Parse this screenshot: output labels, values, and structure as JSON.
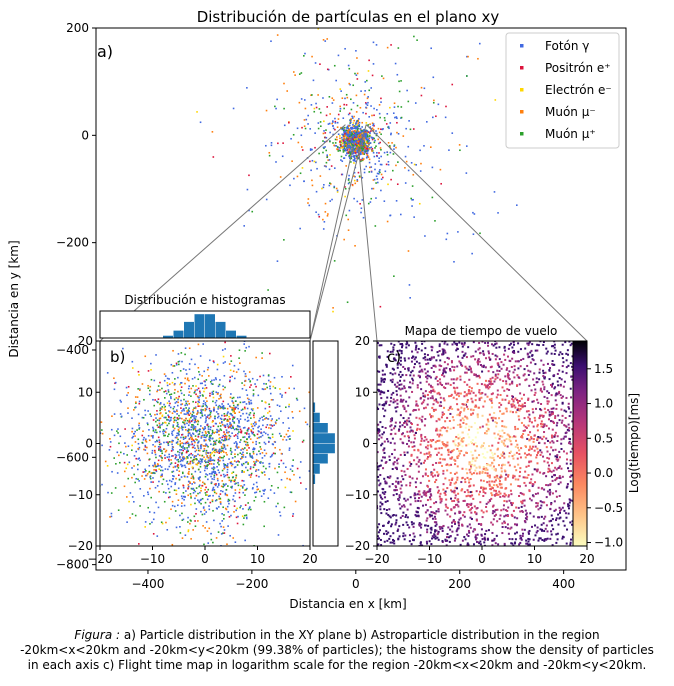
{
  "caption": {
    "prefix": "Figura :",
    "line1": "a) Particle distribution in the XY plane b) Astroparticle distribution in the region",
    "line2": "-20km<x<20km and -20km<y<20km (99.38% of particles); the histograms show the density of particles",
    "line3": "in each axis c) Flight time map in logarithm scale for the region -20km<x<20km and -20km<y<20km."
  },
  "chart_data": [
    {
      "id": "a",
      "type": "scatter",
      "panel_label": "a)",
      "title": "Distribución de partículas en el plano xy",
      "xlabel": "Distancia en x [km]",
      "ylabel": "Distancia en y [km]",
      "xlim": [
        -500,
        520
      ],
      "ylim": [
        -810,
        200
      ],
      "xticks": [
        -400,
        -200,
        0,
        200,
        400
      ],
      "xtick_labels": [
        "−400",
        "−200",
        "0",
        "200",
        "400"
      ],
      "yticks": [
        200,
        0,
        -200,
        -400,
        -600,
        -800
      ],
      "ytick_labels": [
        "200",
        "0",
        "−200",
        "−400",
        "−600",
        "−800"
      ],
      "grid": false,
      "legend_position": "top-right",
      "series": [
        {
          "name": "Fotón γ",
          "color": "#4169e1"
        },
        {
          "name": "Positrón e⁺",
          "color": "#dc143c"
        },
        {
          "name": "Electrón e⁻",
          "color": "#ffd700"
        },
        {
          "name": "Muón μ⁻",
          "color": "#ff7f0e"
        },
        {
          "name": "Muón μ⁺",
          "color": "#2ca02c"
        }
      ],
      "cluster": {
        "center": [
          0,
          -10
        ],
        "core_radius_km": 40,
        "halo_radius_km": 280
      }
    },
    {
      "id": "b",
      "type": "scatter",
      "panel_label": "b)",
      "title": "Distribución e histogramas",
      "xlim": [
        -20,
        20
      ],
      "ylim": [
        -20,
        20
      ],
      "xticks": [
        -20,
        -10,
        0,
        10,
        20
      ],
      "xtick_labels": [
        "−20",
        "−10",
        "0",
        "10",
        "20"
      ],
      "yticks": [
        20,
        10,
        0,
        -10,
        -20
      ],
      "ytick_labels": [
        "20",
        "10",
        "0",
        "−10",
        "−20"
      ],
      "grid": false,
      "histogram_x": {
        "bins": 20,
        "peak_bin_center": 0,
        "color": "#1f77b4"
      },
      "histogram_y": {
        "bins": 20,
        "peak_bin_center": 0,
        "color": "#1f77b4"
      }
    },
    {
      "id": "c",
      "type": "heatmap",
      "panel_label": "c)",
      "title": "Mapa de tiempo de vuelo",
      "xlim": [
        -20,
        20
      ],
      "ylim": [
        -20,
        20
      ],
      "xticks": [
        -20,
        -10,
        0,
        10,
        20
      ],
      "xtick_labels": [
        "−20",
        "−10",
        "0",
        "10",
        "20"
      ],
      "yticks": [
        20,
        10,
        0,
        -10,
        -20
      ],
      "ytick_labels": [
        "20",
        "10",
        "0",
        "−10",
        "−20"
      ],
      "colormap": "magma_r",
      "colorbar": {
        "label": "Log(tiempo)[ms]",
        "range": [
          -1.05,
          1.9
        ],
        "ticks": [
          1.5,
          1.0,
          0.5,
          0.0,
          -0.5,
          -1.0
        ],
        "tick_labels": [
          "1.5",
          "1.0",
          "0.5",
          "0.0",
          "−0.5",
          "−1.0"
        ]
      }
    }
  ]
}
